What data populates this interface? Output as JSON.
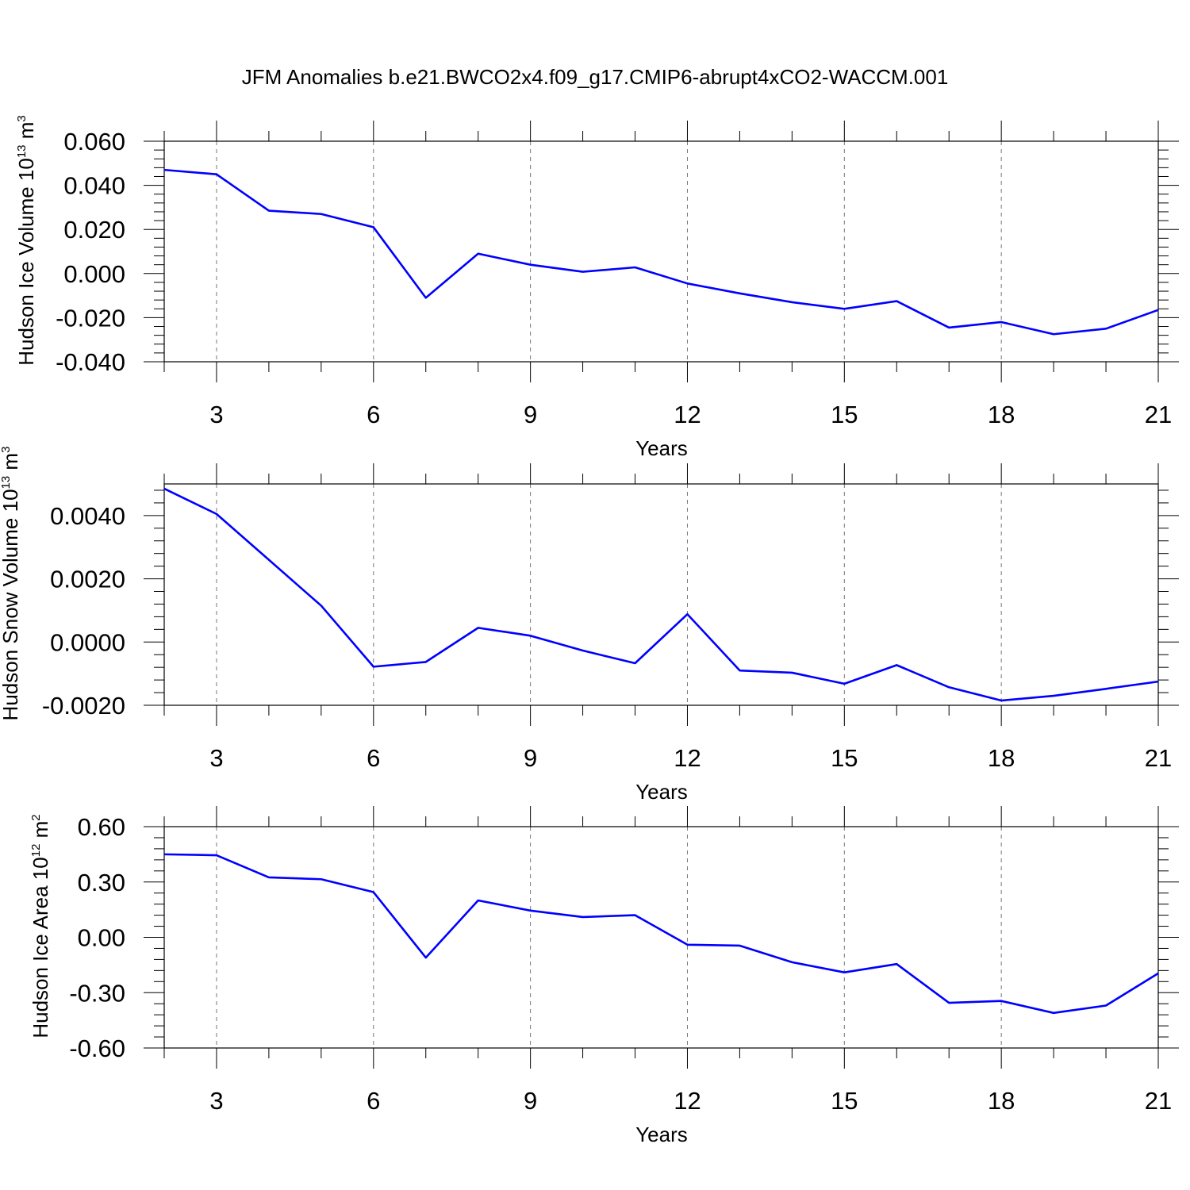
{
  "title": "JFM Anomalies b.e21.BWCO2x4.f09_g17.CMIP6-abrupt4xCO2-WACCM.001",
  "line_color": "#0000ff",
  "chart_data": [
    {
      "type": "line",
      "xlabel": "Years",
      "ylabel": "Hudson Ice Volume 10",
      "ylabel_exponent": "13",
      "ylabel_unit": " m",
      "ylabel_unit_exponent": "3",
      "x": [
        2,
        3,
        4,
        5,
        6,
        7,
        8,
        9,
        10,
        11,
        12,
        13,
        14,
        15,
        16,
        17,
        18,
        19,
        20,
        21
      ],
      "values": [
        0.047,
        0.045,
        0.0285,
        0.027,
        0.021,
        -0.011,
        0.009,
        0.004,
        0.0008,
        0.0028,
        -0.0045,
        -0.009,
        -0.013,
        -0.016,
        -0.0125,
        -0.0245,
        -0.022,
        -0.0275,
        -0.025,
        -0.0165
      ],
      "xlim": [
        2,
        21
      ],
      "ylim": [
        -0.04,
        0.06
      ],
      "xticks": [
        3,
        6,
        9,
        12,
        15,
        18,
        21
      ],
      "xtick_labels": [
        "3",
        "6",
        "9",
        "12",
        "15",
        "18",
        "21"
      ],
      "yticks": [
        -0.04,
        -0.02,
        0.0,
        0.02,
        0.04,
        0.06
      ],
      "ytick_labels": [
        "-0.040",
        "-0.020",
        "0.000",
        "0.020",
        "0.040",
        "0.060"
      ],
      "grid": "vertical dashed"
    },
    {
      "type": "line",
      "xlabel": "Years",
      "ylabel": "Hudson Snow Volume 10",
      "ylabel_exponent": "13",
      "ylabel_unit": " m",
      "ylabel_unit_exponent": "3",
      "x": [
        2,
        3,
        4,
        5,
        6,
        7,
        8,
        9,
        10,
        11,
        12,
        13,
        14,
        15,
        16,
        17,
        18,
        19,
        20,
        21
      ],
      "values": [
        0.00485,
        0.00405,
        0.0026,
        0.00115,
        -0.00078,
        -0.00063,
        0.00045,
        0.0002,
        -0.00027,
        -0.00067,
        0.00088,
        -0.0009,
        -0.00097,
        -0.00132,
        -0.00073,
        -0.00143,
        -0.00185,
        -0.0017,
        -0.00148,
        -0.00125
      ],
      "xlim": [
        2,
        21
      ],
      "ylim": [
        -0.002,
        0.005
      ],
      "xticks": [
        3,
        6,
        9,
        12,
        15,
        18,
        21
      ],
      "xtick_labels": [
        "3",
        "6",
        "9",
        "12",
        "15",
        "18",
        "21"
      ],
      "yticks": [
        -0.002,
        0.0,
        0.002,
        0.004
      ],
      "ytick_labels": [
        "-0.0020",
        "0.0000",
        "0.0020",
        "0.0040"
      ],
      "grid": "vertical dashed"
    },
    {
      "type": "line",
      "xlabel": "Years",
      "ylabel": "Hudson Ice Area 10",
      "ylabel_exponent": "12",
      "ylabel_unit": " m",
      "ylabel_unit_exponent": "2",
      "x": [
        2,
        3,
        4,
        5,
        6,
        7,
        8,
        9,
        10,
        11,
        12,
        13,
        14,
        15,
        16,
        17,
        18,
        19,
        20,
        21
      ],
      "values": [
        0.45,
        0.445,
        0.325,
        0.315,
        0.245,
        -0.11,
        0.2,
        0.145,
        0.11,
        0.12,
        -0.04,
        -0.045,
        -0.135,
        -0.19,
        -0.145,
        -0.355,
        -0.345,
        -0.41,
        -0.37,
        -0.195
      ],
      "xlim": [
        2,
        21
      ],
      "ylim": [
        -0.6,
        0.6
      ],
      "xticks": [
        3,
        6,
        9,
        12,
        15,
        18,
        21
      ],
      "xtick_labels": [
        "3",
        "6",
        "9",
        "12",
        "15",
        "18",
        "21"
      ],
      "yticks": [
        -0.6,
        -0.3,
        0.0,
        0.3,
        0.6
      ],
      "ytick_labels": [
        "-0.60",
        "-0.30",
        "0.00",
        "0.30",
        "0.60"
      ],
      "grid": "vertical dashed"
    }
  ]
}
